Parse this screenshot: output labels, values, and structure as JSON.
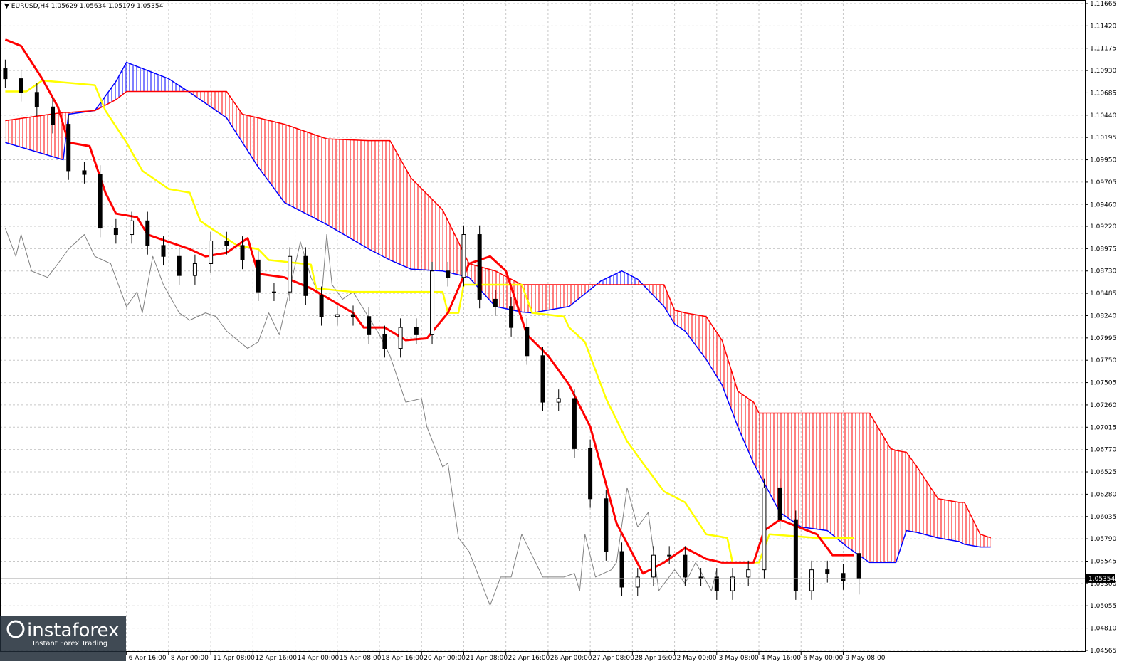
{
  "chart_data": {
    "type": "candlestick",
    "symbol": "EURUSD,H4",
    "xlim": [
      0,
      206
    ],
    "ylim": [
      1.04549,
      1.11704
    ],
    "grid": true,
    "yticks": [
      1.11665,
      {
        "value": 1.1142,
        "label": "1.11420"
      },
      1.11175,
      {
        "value": 1.1093,
        "label": "1.10930"
      },
      1.10685,
      {
        "value": 1.1044,
        "label": "1.10440"
      },
      1.10195,
      {
        "value": 1.0995,
        "label": "1.09950"
      },
      1.09705,
      {
        "value": 1.0946,
        "label": "1.09460"
      },
      {
        "value": 1.0922,
        "label": "1.09220"
      },
      1.08975,
      {
        "value": 1.0873,
        "label": "1.08730"
      },
      1.08485,
      {
        "value": 1.0824,
        "label": "1.08240"
      },
      1.07995,
      {
        "value": 1.0775,
        "label": "1.07750"
      },
      1.07505,
      {
        "value": 1.0726,
        "label": "1.07260"
      },
      1.07015,
      {
        "value": 1.0677,
        "label": "1.06770"
      },
      1.06525,
      {
        "value": 1.0628,
        "label": "1.06280"
      },
      1.06035,
      {
        "value": 1.0579,
        "label": "1.05790"
      },
      1.05545,
      {
        "value": 1.053,
        "label": "1.05300"
      },
      1.05055,
      {
        "value": 1.0481,
        "label": "1.04810"
      },
      1.04565
    ],
    "xticks": [
      {
        "value": 24,
        "label": "6 Apr 16:00"
      },
      {
        "value": 32,
        "label": "8 Apr 00:00"
      },
      {
        "value": 40,
        "label": "11 Apr 08:00"
      },
      {
        "value": 48,
        "label": "12 Apr 16:00"
      },
      {
        "value": 56,
        "label": "14 Apr 00:00"
      },
      {
        "value": 64,
        "label": "15 Apr 08:00"
      },
      {
        "value": 72,
        "label": "18 Apr 16:00"
      },
      {
        "value": 80,
        "label": "20 Apr 00:00"
      },
      {
        "value": 88,
        "label": "21 Apr 08:00"
      },
      {
        "value": 96,
        "label": "22 Apr 16:00"
      },
      {
        "value": 104,
        "label": "26 Apr 00:00"
      },
      {
        "value": 112,
        "label": "27 Apr 08:00"
      },
      {
        "value": 120,
        "label": "28 Apr 16:00"
      },
      {
        "value": 128,
        "label": "2 May 00:00"
      },
      {
        "value": 136,
        "label": "3 May 08:00"
      },
      {
        "value": 144,
        "label": "4 May 16:00"
      },
      {
        "value": 152,
        "label": "6 May 00:00"
      },
      {
        "value": 160,
        "label": "9 May 08:00"
      }
    ],
    "candles": {
      "up_color": "#ffffff",
      "down_color": "#000000",
      "edge_color": "#000000",
      "x": [
        1,
        4,
        7,
        10,
        13,
        16,
        19,
        22,
        25,
        28,
        31,
        34,
        37,
        40,
        43,
        46,
        49,
        52,
        55,
        58,
        61,
        64,
        67,
        70,
        73,
        76,
        79,
        82,
        85,
        88,
        91,
        94,
        97,
        100,
        103,
        106,
        109,
        112,
        115,
        118,
        121,
        124,
        127,
        130,
        133,
        136,
        139,
        142,
        145,
        148,
        151,
        154,
        157,
        160,
        163
      ],
      "open": [
        1.1095,
        1.1084,
        1.1069,
        1.1053,
        1.1034,
        1.0983,
        1.0979,
        1.092,
        1.0913,
        1.0928,
        1.0901,
        1.0889,
        1.0868,
        1.0881,
        1.0906,
        1.0901,
        1.0885,
        1.085,
        1.085,
        1.0889,
        1.0846,
        1.0823,
        1.0825,
        1.0823,
        1.0803,
        1.0788,
        1.0811,
        1.0803,
        1.0873,
        1.0866,
        1.0913,
        1.0842,
        1.0834,
        1.0811,
        1.078,
        1.0729,
        1.0733,
        1.0678,
        1.0623,
        1.0565,
        1.0526,
        1.0537,
        1.0561,
        1.0561,
        1.0537,
        1.0537,
        1.0522,
        1.0537,
        1.0545,
        1.0635,
        1.06,
        1.0522,
        1.0545,
        1.0541,
        1.05629
      ],
      "high": [
        1.1105,
        1.1094,
        1.1079,
        1.1063,
        1.1044,
        1.0993,
        1.0989,
        1.093,
        1.0938,
        1.0938,
        1.0911,
        1.0899,
        1.0891,
        1.0916,
        1.0916,
        1.0911,
        1.0895,
        1.086,
        1.0899,
        1.0899,
        1.0856,
        1.0835,
        1.0835,
        1.0833,
        1.0813,
        1.0821,
        1.0821,
        1.0883,
        1.0883,
        1.0923,
        1.0923,
        1.0852,
        1.0844,
        1.0821,
        1.079,
        1.0743,
        1.0743,
        1.0688,
        1.0633,
        1.0575,
        1.0547,
        1.0571,
        1.0571,
        1.0571,
        1.0547,
        1.0547,
        1.0547,
        1.0555,
        1.0645,
        1.0645,
        1.061,
        1.0555,
        1.0555,
        1.0551,
        1.05634
      ],
      "low": [
        1.1074,
        1.1059,
        1.1043,
        1.1024,
        1.0973,
        1.0969,
        1.091,
        1.0903,
        1.0903,
        1.0891,
        1.0879,
        1.0858,
        1.0858,
        1.0871,
        1.0891,
        1.0875,
        1.084,
        1.084,
        1.084,
        1.0836,
        1.0813,
        1.0813,
        1.0813,
        1.0793,
        1.0778,
        1.0778,
        1.0793,
        1.0793,
        1.0856,
        1.0856,
        1.0832,
        1.0824,
        1.0801,
        1.077,
        1.0719,
        1.0719,
        1.0668,
        1.0613,
        1.0555,
        1.0516,
        1.0516,
        1.0527,
        1.0551,
        1.0527,
        1.0527,
        1.0512,
        1.0512,
        1.0527,
        1.0535,
        1.059,
        1.0512,
        1.0512,
        1.0531,
        1.0523,
        1.05179
      ],
      "close": [
        1.1084,
        1.1069,
        1.1053,
        1.1034,
        1.0983,
        1.0979,
        1.092,
        1.0913,
        1.0928,
        1.0901,
        1.0889,
        1.0868,
        1.0881,
        1.0906,
        1.0901,
        1.0885,
        1.085,
        1.085,
        1.0889,
        1.0846,
        1.0823,
        1.0825,
        1.0823,
        1.0803,
        1.0788,
        1.0811,
        1.0803,
        1.0873,
        1.0866,
        1.0913,
        1.0842,
        1.0834,
        1.0811,
        1.078,
        1.0729,
        1.0733,
        1.0678,
        1.0623,
        1.0565,
        1.0526,
        1.0537,
        1.0561,
        1.0561,
        1.0537,
        1.0537,
        1.0522,
        1.0537,
        1.0545,
        1.0635,
        1.06,
        1.0522,
        1.0545,
        1.0541,
        1.0533,
        1.05354
      ]
    },
    "cloud": {
      "a_color": "#0000ff",
      "b_color": "#ff0000",
      "x": [
        1,
        12,
        13,
        18,
        22,
        24,
        32,
        36,
        39,
        43,
        46,
        49,
        54,
        62,
        70,
        74,
        78,
        84,
        89,
        94,
        99,
        101,
        108,
        114,
        118,
        121,
        126,
        128,
        130,
        134,
        137,
        140,
        143,
        144,
        148,
        152,
        157,
        161,
        165,
        169,
        170,
        172,
        174,
        178,
        182,
        183,
        186,
        188
      ],
      "span_a": [
        1.1014,
        1.0995,
        1.1045,
        1.1049,
        1.1081,
        1.1102,
        1.1084,
        1.1069,
        1.1057,
        1.1041,
        1.1014,
        1.0987,
        1.0948,
        1.0924,
        1.0897,
        1.0885,
        1.0875,
        1.0873,
        1.0866,
        1.0834,
        1.0828,
        1.0827,
        1.0834,
        1.0862,
        1.0873,
        1.0864,
        1.0834,
        1.0815,
        1.0807,
        1.0776,
        1.0748,
        1.0702,
        1.0662,
        1.0651,
        1.0608,
        1.0592,
        1.0588,
        1.0569,
        1.0553,
        1.0553,
        1.0553,
        1.0588,
        1.0586,
        1.058,
        1.0576,
        1.0573,
        1.057,
        1.057
      ],
      "span_b": [
        1.1038,
        1.1047,
        1.1047,
        1.1049,
        1.1061,
        1.107,
        1.107,
        1.107,
        1.107,
        1.107,
        1.1045,
        1.1041,
        1.1034,
        1.1018,
        1.1016,
        1.1016,
        1.0975,
        1.094,
        1.0881,
        1.0873,
        1.0858,
        1.0858,
        1.0858,
        1.0858,
        1.0858,
        1.0858,
        1.0858,
        1.083,
        1.0827,
        1.0823,
        1.0797,
        1.0741,
        1.0729,
        1.0717,
        1.0717,
        1.0717,
        1.0717,
        1.0717,
        1.0717,
        1.0678,
        1.0676,
        1.0674,
        1.0658,
        1.0623,
        1.0619,
        1.0619,
        1.0584,
        1.058
      ]
    },
    "lines": [
      {
        "color": "#808080",
        "width": 1,
        "x": [
          1,
          3,
          4,
          6,
          9,
          11,
          13,
          16,
          18,
          21,
          24,
          26,
          27,
          29,
          31,
          34,
          36,
          39,
          41,
          43,
          47,
          49,
          51,
          53,
          57,
          59,
          61,
          62,
          63,
          65,
          67,
          72,
          74,
          77,
          80,
          81,
          84,
          85,
          87,
          89,
          93,
          95,
          97,
          99,
          103,
          107,
          109,
          110,
          111,
          113,
          116,
          117,
          119,
          121,
          123,
          125,
          128,
          130,
          132,
          135,
          136
        ],
        "values": [
          1.092,
          1.0889,
          1.0913,
          1.0873,
          1.0866,
          1.0881,
          1.0897,
          1.0913,
          1.0889,
          1.0881,
          1.0834,
          1.085,
          1.0827,
          1.0889,
          1.0858,
          1.0827,
          1.0819,
          1.0827,
          1.0823,
          1.0807,
          1.0788,
          1.0795,
          1.0827,
          1.0803,
          1.0905,
          1.0866,
          1.0842,
          1.0913,
          1.0858,
          1.0842,
          1.085,
          1.0803,
          1.078,
          1.0729,
          1.0733,
          1.0702,
          1.0658,
          1.0662,
          1.058,
          1.0565,
          1.0506,
          1.0537,
          1.0537,
          1.0584,
          1.0537,
          1.0537,
          1.0541,
          1.0522,
          1.0584,
          1.0537,
          1.0545,
          1.0553,
          1.0635,
          1.0592,
          1.0608,
          1.0522,
          1.0545,
          1.053,
          1.0553,
          1.0522,
          1.0545
        ]
      },
      {
        "color": "#ffff00",
        "width": 2.5,
        "x": [
          1,
          5,
          8,
          18,
          20,
          24,
          27,
          32,
          36,
          38,
          40,
          45,
          49,
          51,
          59,
          60,
          67,
          84,
          85,
          87,
          88,
          99,
          101,
          107,
          108,
          111,
          115,
          119,
          122,
          126,
          130,
          134,
          138,
          139,
          144,
          146,
          155,
          162
        ],
        "values": [
          1.107,
          1.107,
          1.1082,
          1.1077,
          1.1049,
          1.1014,
          1.0983,
          1.0963,
          1.0959,
          1.0928,
          1.092,
          1.0901,
          1.0897,
          1.0885,
          1.088,
          1.0854,
          1.085,
          1.085,
          1.0827,
          1.0827,
          1.0858,
          1.0858,
          1.0827,
          1.0823,
          1.0811,
          1.0795,
          1.0733,
          1.0686,
          1.0662,
          1.0631,
          1.0619,
          1.0584,
          1.058,
          1.0553,
          1.0553,
          1.0584,
          1.058,
          1.058
        ]
      },
      {
        "color": "#ff0000",
        "width": 3,
        "x": [
          1,
          4,
          8,
          11,
          13,
          17,
          20,
          22,
          26,
          28,
          32,
          36,
          39,
          43,
          47,
          49,
          54,
          59,
          67,
          69,
          73,
          77,
          81,
          85,
          89,
          93,
          96,
          100,
          104,
          108,
          112,
          115,
          117,
          122,
          126,
          130,
          134,
          137,
          143,
          145,
          148,
          155,
          158,
          162
        ],
        "values": [
          1.1127,
          1.112,
          1.1084,
          1.1053,
          1.1014,
          1.101,
          1.0959,
          1.0936,
          1.0932,
          1.0913,
          1.0905,
          1.0897,
          1.0889,
          1.0893,
          1.0909,
          1.087,
          1.0866,
          1.0854,
          1.0827,
          1.0811,
          1.0811,
          1.0797,
          1.0799,
          1.0827,
          1.0881,
          1.0889,
          1.0873,
          1.0803,
          1.078,
          1.0748,
          1.0702,
          1.0639,
          1.0596,
          1.0541,
          1.0553,
          1.0569,
          1.0557,
          1.0553,
          1.0553,
          1.0588,
          1.06,
          1.0584,
          1.0561,
          1.0561
        ]
      }
    ]
  },
  "watermark": {
    "name": "instaforex",
    "tagline": "Instant Forex Trading"
  }
}
